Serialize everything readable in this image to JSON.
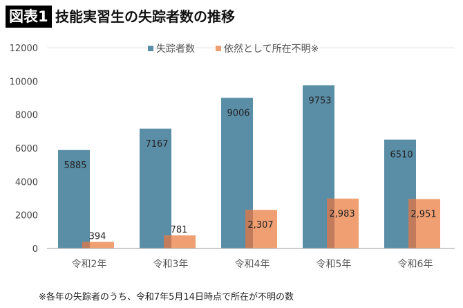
{
  "header": {
    "badge": "図表1",
    "title": "技能実習生の失踪者数の推移"
  },
  "note": "※各年の失踪者のうち、令和7年5月14日時点で所在が不明の数",
  "chart_data": {
    "type": "bar",
    "title": "技能実習生の失踪者数の推移",
    "categories": [
      "令和2年",
      "令和3年",
      "令和4年",
      "令和5年",
      "令和6年"
    ],
    "series": [
      {
        "name": "失踪者数",
        "values": [
          5885,
          7167,
          9006,
          9753,
          6510
        ],
        "labels": [
          "5885",
          "7167",
          "9006",
          "9753",
          "6510"
        ],
        "color": "#5a8ea7"
      },
      {
        "name": "依然として所在不明※",
        "values": [
          394,
          781,
          2307,
          2983,
          2951
        ],
        "labels": [
          "394",
          "781",
          "2,307",
          "2,983",
          "2,951"
        ],
        "color": "#ef9f72"
      }
    ],
    "ylim": [
      0,
      12000
    ],
    "yticks": [
      "0",
      "2000",
      "4000",
      "6000",
      "8000",
      "10000",
      "12000"
    ],
    "legend": "top",
    "grid": false,
    "overlap_color": "#c27c5c"
  }
}
